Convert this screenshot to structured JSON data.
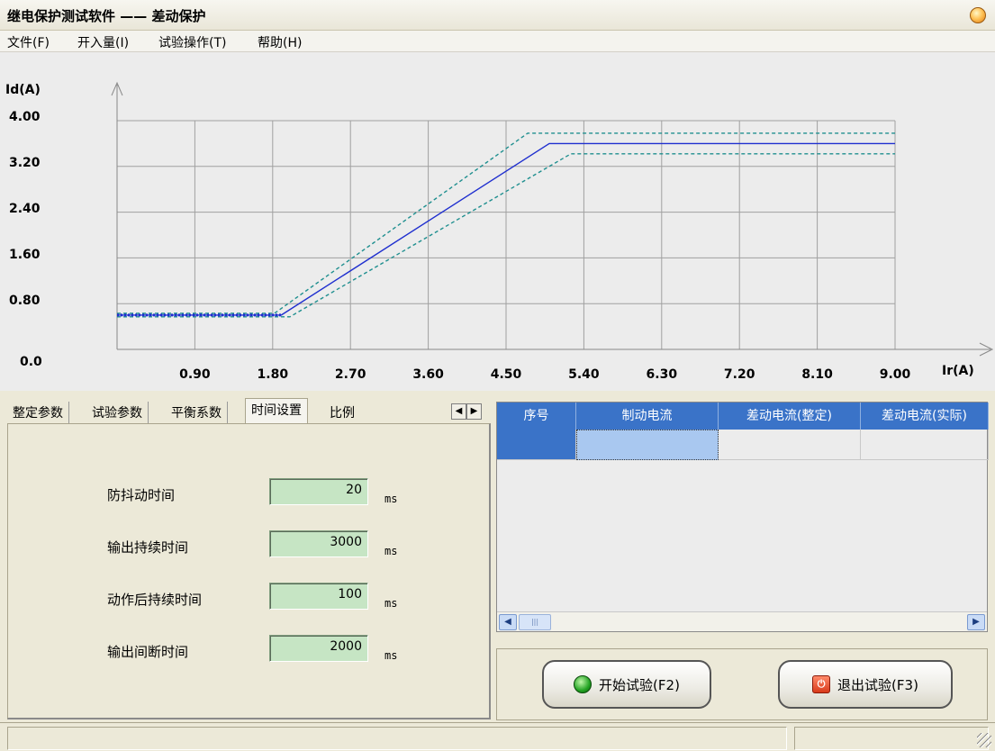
{
  "window": {
    "title": "继电保护测试软件 —— 差动保护"
  },
  "menu": [
    {
      "label": "文件(F)"
    },
    {
      "label": "开入量(I)"
    },
    {
      "label": "试验操作(T)"
    },
    {
      "label": "帮助(H)"
    }
  ],
  "chart_data": {
    "type": "line",
    "ylabel": "Id(A)",
    "xlabel": "Ir(A)",
    "y_ticks": [
      "4.00",
      "3.20",
      "2.40",
      "1.60",
      "0.80",
      "0.0"
    ],
    "x_ticks": [
      "0.90",
      "1.80",
      "2.70",
      "3.60",
      "4.50",
      "5.40",
      "6.30",
      "7.20",
      "8.10",
      "9.00"
    ],
    "xlim": [
      0,
      9.0
    ],
    "ylim": [
      0,
      4.0
    ],
    "grid": true,
    "series": [
      {
        "style": "solid",
        "color": "#1f2fcf",
        "points": [
          [
            0,
            0.6
          ],
          [
            1.9,
            0.6
          ],
          [
            5.0,
            3.6
          ],
          [
            9.0,
            3.6
          ]
        ]
      },
      {
        "style": "dashed",
        "color": "#1f8f8f",
        "points": [
          [
            0,
            0.63
          ],
          [
            1.82,
            0.63
          ],
          [
            4.75,
            3.78
          ],
          [
            9.0,
            3.78
          ]
        ]
      },
      {
        "style": "dashed",
        "color": "#1f8f8f",
        "points": [
          [
            0,
            0.57
          ],
          [
            2.0,
            0.57
          ],
          [
            5.25,
            3.42
          ],
          [
            9.0,
            3.42
          ]
        ]
      },
      {
        "style": "dotted",
        "color": "#1f2fcf",
        "points": [
          [
            0,
            0.6
          ],
          [
            1.9,
            0.6
          ]
        ]
      }
    ]
  },
  "tabs": [
    {
      "label": "整定参数",
      "active": false
    },
    {
      "label": "试验参数",
      "active": false
    },
    {
      "label": "平衡系数",
      "active": false
    },
    {
      "label": "时间设置",
      "active": true
    },
    {
      "label": "比例",
      "active": false
    }
  ],
  "time_settings": [
    {
      "label": "防抖动时间",
      "value": "20",
      "unit": "ms"
    },
    {
      "label": "输出持续时间",
      "value": "3000",
      "unit": "ms"
    },
    {
      "label": "动作后持续时间",
      "value": "100",
      "unit": "ms"
    },
    {
      "label": "输出间断时间",
      "value": "2000",
      "unit": "ms"
    }
  ],
  "grid": {
    "columns": [
      "序号",
      "制动电流",
      "差动电流(整定)",
      "差动电流(实际)"
    ]
  },
  "buttons": {
    "start": "开始试验(F2)",
    "exit": "退出试验(F3)"
  },
  "icons": {
    "tab_left": "◀",
    "tab_right": "▶",
    "scroll_left": "◀",
    "scroll_right": "▶",
    "scroll_thumb": "|||",
    "exit_icon_glyph": "⏻"
  }
}
